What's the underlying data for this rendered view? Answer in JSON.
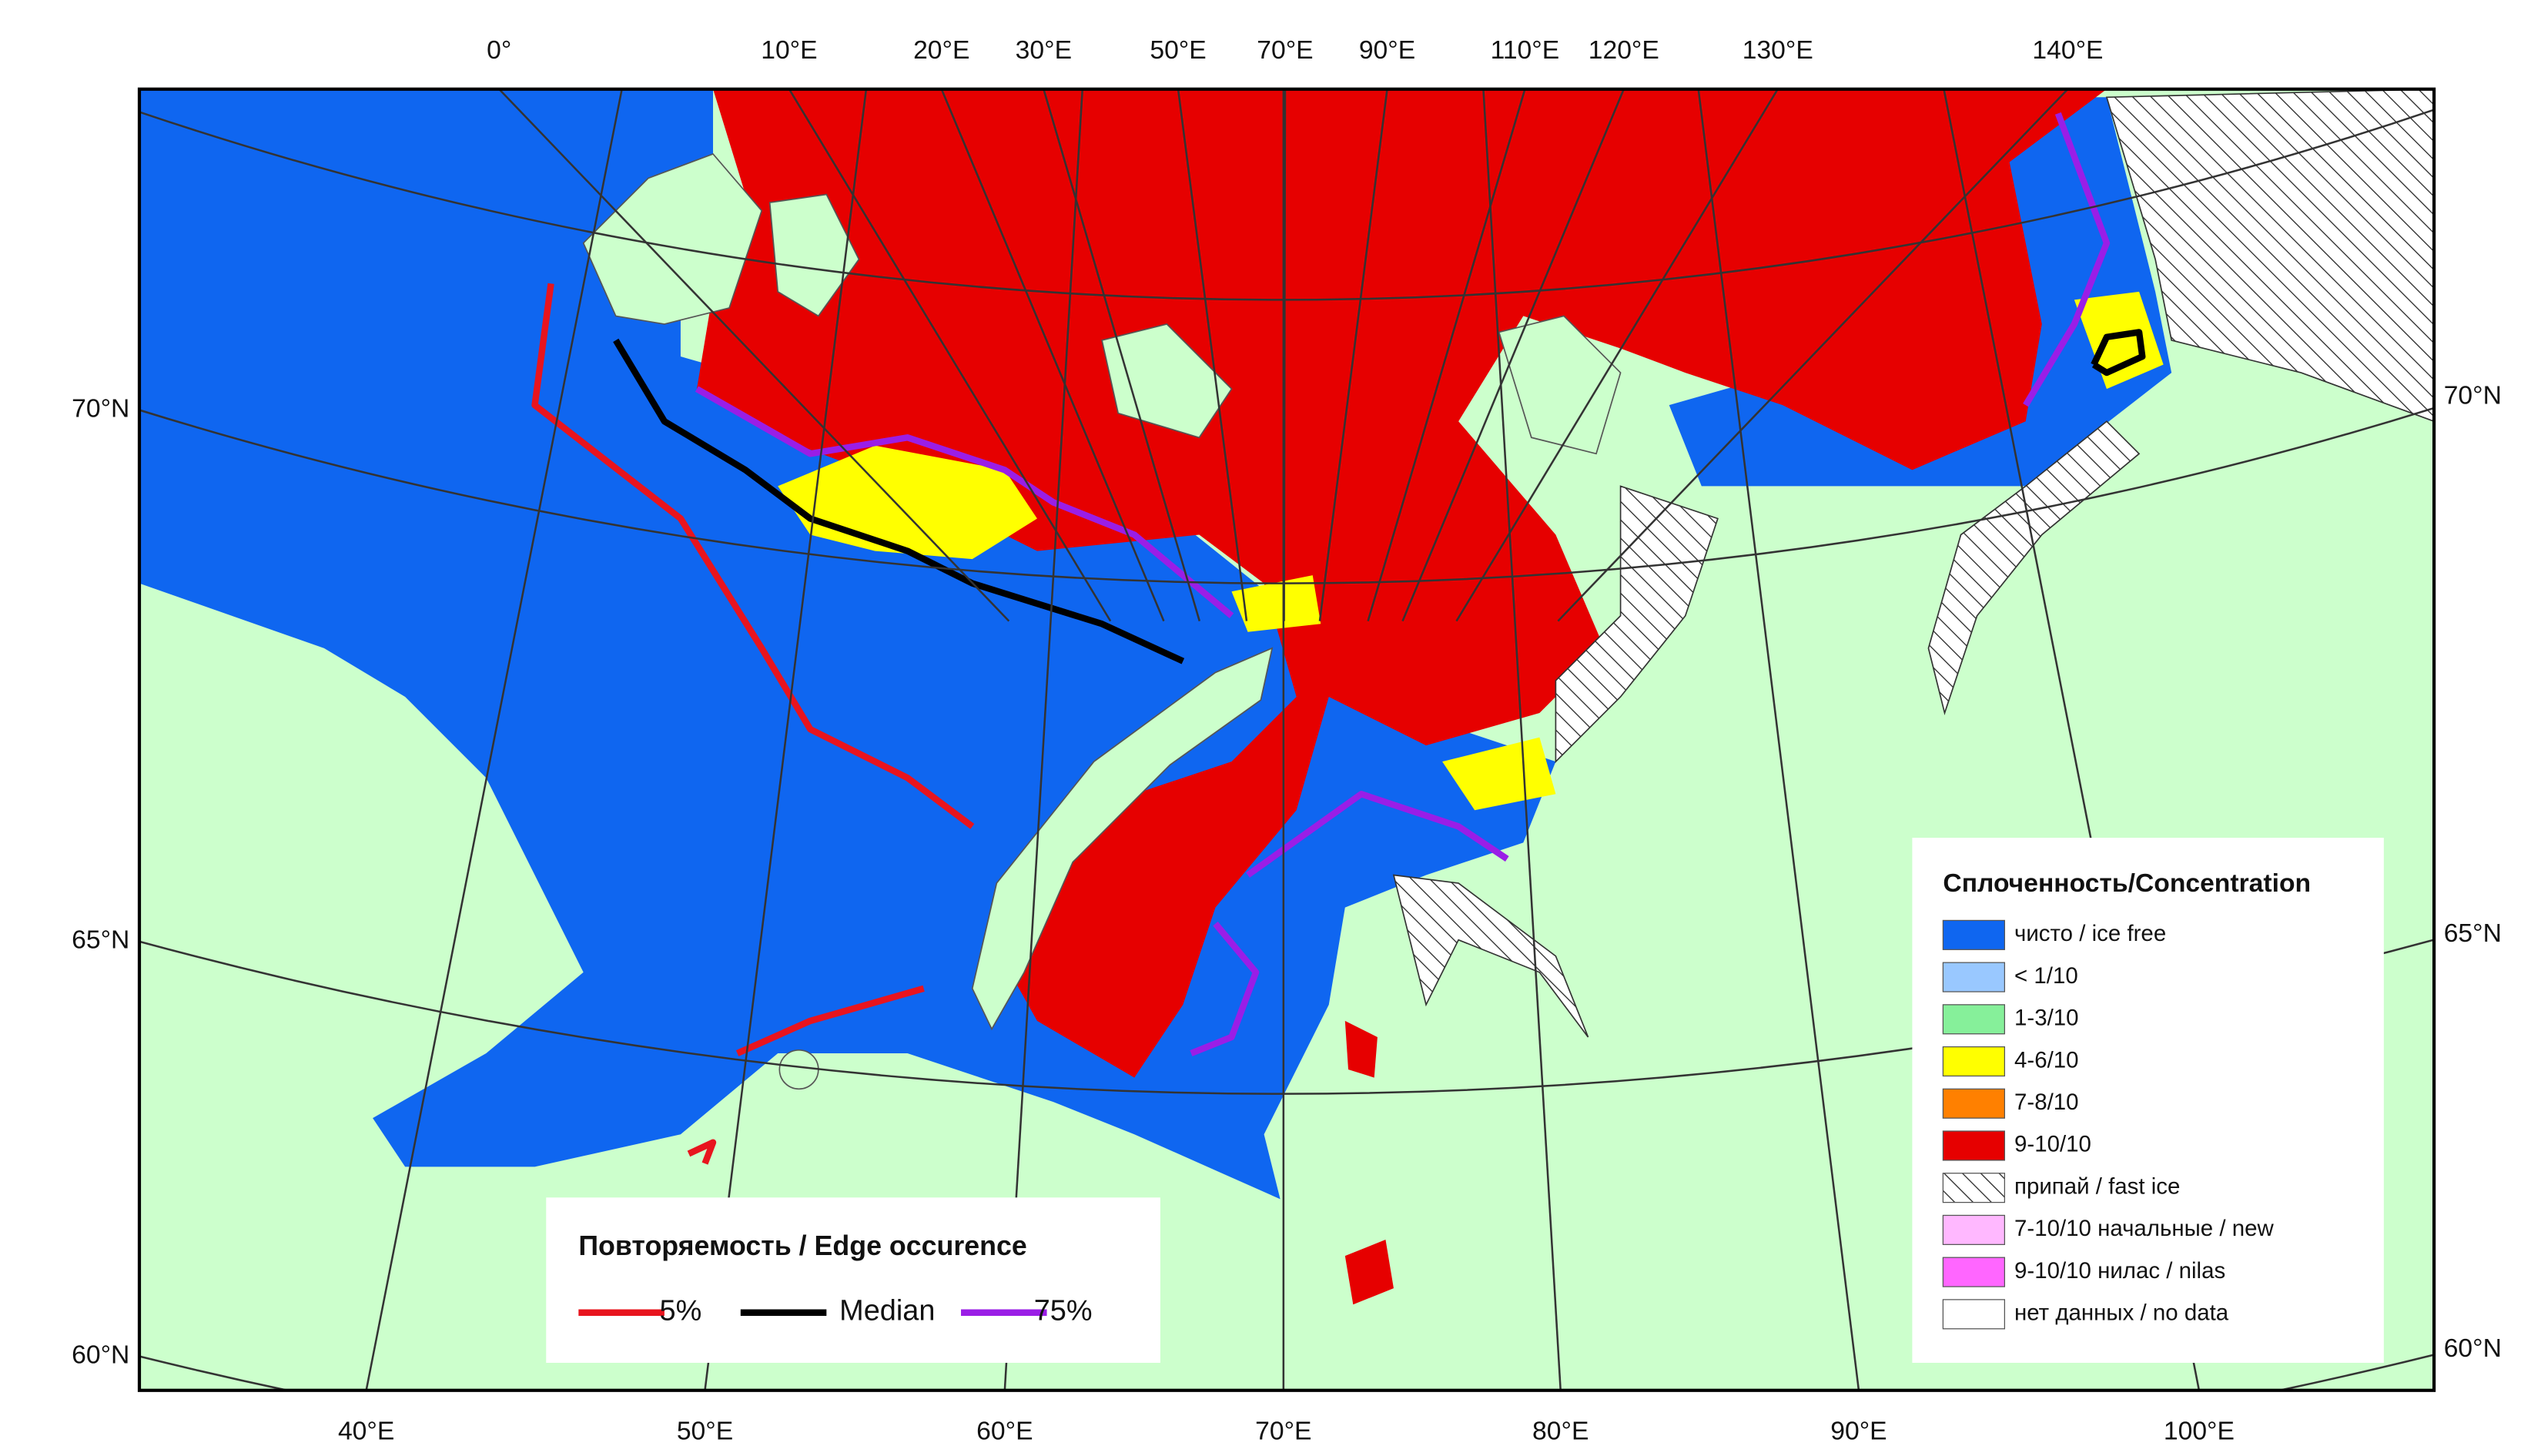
{
  "graticule_labels": {
    "top": [
      "0°",
      "10°E",
      "20°E",
      "30°E",
      "50°E",
      "70°E",
      "90°E",
      "110°E",
      "120°E",
      "130°E",
      "140°E"
    ],
    "bottom": [
      "40°E",
      "50°E",
      "60°E",
      "70°E",
      "80°E",
      "90°E",
      "100°E"
    ],
    "left": [
      "70°N",
      "65°N",
      "60°N"
    ],
    "right": [
      "70°N",
      "65°N",
      "60°N"
    ]
  },
  "edge_legend": {
    "title": "Повторяемость / Edge occurence",
    "items": [
      {
        "label": "5%",
        "color": "#e8141e"
      },
      {
        "label": "Median",
        "color": "#000000"
      },
      {
        "label": "75%",
        "color": "#9a1ee6"
      }
    ]
  },
  "concentration_legend": {
    "title": "Сплоченность/Concentration",
    "items": [
      {
        "label": "чисто / ice free",
        "color": "#0f66f0"
      },
      {
        "label": "< 1/10",
        "color": "#99c8ff"
      },
      {
        "label": "1-3/10",
        "color": "#86f09a"
      },
      {
        "label": "4-6/10",
        "color": "#ffff00"
      },
      {
        "label": "7-8/10",
        "color": "#ff8000"
      },
      {
        "label": "9-10/10",
        "color": "#e60000"
      },
      {
        "label": "припай / fast ice",
        "pattern": "hatch"
      },
      {
        "label": "7-10/10 начальные / new",
        "color": "#ffb8ff"
      },
      {
        "label": "9-10/10 нилас / nilas",
        "color": "#ff66ff"
      },
      {
        "label": "нет данных / no data",
        "color": "#ffffff"
      }
    ]
  }
}
